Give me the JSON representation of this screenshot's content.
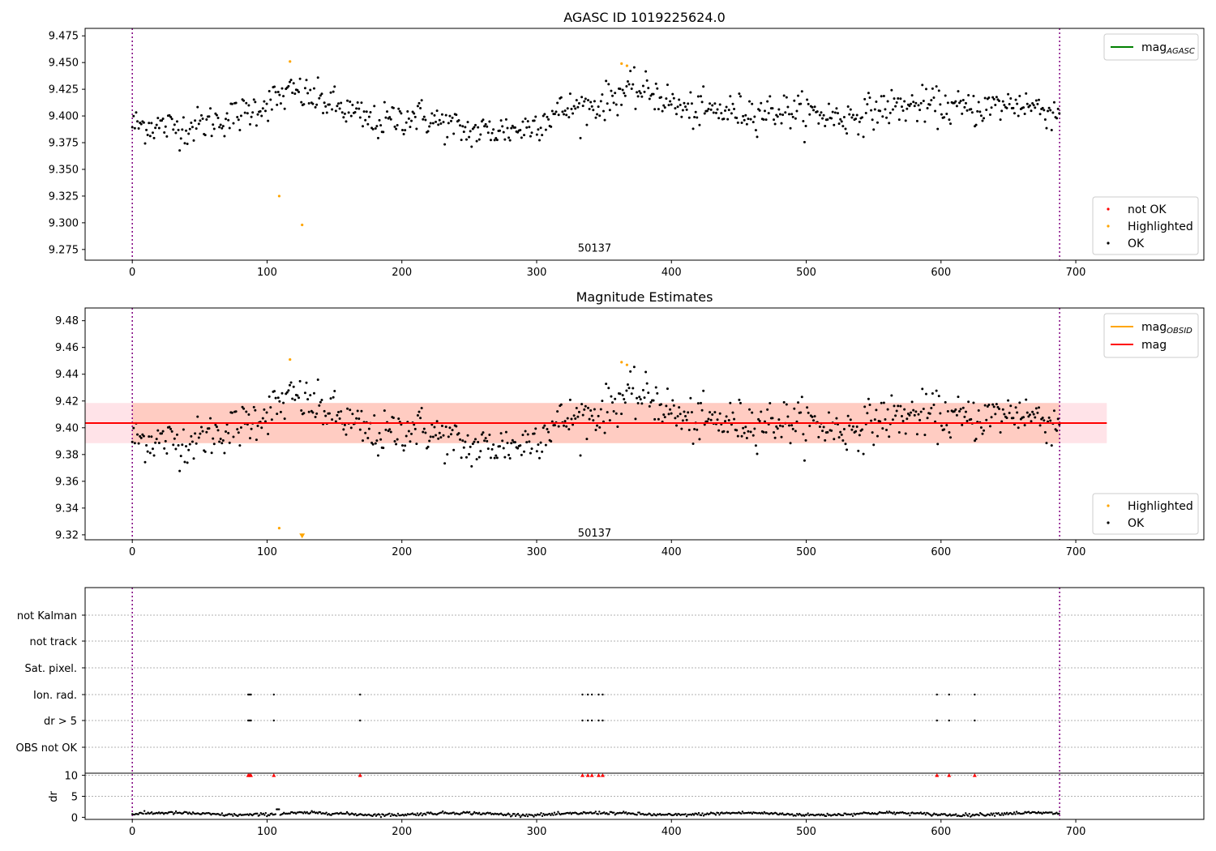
{
  "chart_data": [
    {
      "type": "scatter",
      "title": "AGASC ID 1019225624.0",
      "xlim": [
        -35,
        795
      ],
      "ylim": [
        9.265,
        9.482
      ],
      "xticks": [
        0,
        100,
        200,
        300,
        400,
        500,
        600,
        700
      ],
      "yticks": [
        9.275,
        9.3,
        9.325,
        9.35,
        9.375,
        9.4,
        9.425,
        9.45,
        9.475
      ],
      "ytick_labels": [
        "9.275",
        "9.300",
        "9.325",
        "9.350",
        "9.375",
        "9.400",
        "9.425",
        "9.450",
        "9.475"
      ],
      "vlines": [
        0,
        688
      ],
      "annotation": {
        "text": "50137",
        "x": 343,
        "y": 9.276
      },
      "line_legend": [
        {
          "name": "mag_AGASC",
          "base": "mag",
          "sub": "AGASC",
          "color": "#008000"
        }
      ],
      "point_legend": [
        {
          "name": "not OK",
          "color": "#ff0000"
        },
        {
          "name": "Highlighted",
          "color": "#ffa500"
        },
        {
          "name": "OK",
          "color": "#000000"
        }
      ],
      "series": [
        {
          "name": "OK",
          "color": "#000000",
          "kind": "baseline",
          "knots": [
            [
              0,
              9.392
            ],
            [
              40,
              9.389
            ],
            [
              80,
              9.401
            ],
            [
              120,
              9.423
            ],
            [
              150,
              9.41
            ],
            [
              180,
              9.393
            ],
            [
              210,
              9.401
            ],
            [
              250,
              9.385
            ],
            [
              290,
              9.388
            ],
            [
              320,
              9.406
            ],
            [
              345,
              9.41
            ],
            [
              365,
              9.423
            ],
            [
              385,
              9.423
            ],
            [
              410,
              9.405
            ],
            [
              450,
              9.404
            ],
            [
              490,
              9.405
            ],
            [
              530,
              9.398
            ],
            [
              560,
              9.408
            ],
            [
              590,
              9.41
            ],
            [
              620,
              9.406
            ],
            [
              660,
              9.412
            ],
            [
              688,
              9.402
            ]
          ],
          "noise": 0.011
        },
        {
          "name": "Highlighted",
          "color": "#ffa500",
          "points": [
            [
              117,
              9.451
            ],
            [
              363,
              9.449
            ],
            [
              367,
              9.447
            ],
            [
              109,
              9.325
            ],
            [
              126,
              9.298
            ]
          ]
        }
      ]
    },
    {
      "type": "scatter",
      "title": "Magnitude Estimates",
      "xlim": [
        -35,
        795
      ],
      "ylim": [
        9.3163,
        9.4895
      ],
      "xticks": [
        0,
        100,
        200,
        300,
        400,
        500,
        600,
        700
      ],
      "yticks": [
        9.32,
        9.34,
        9.36,
        9.38,
        9.4,
        9.42,
        9.44,
        9.46,
        9.48
      ],
      "ytick_labels": [
        "9.32",
        "9.34",
        "9.36",
        "9.38",
        "9.40",
        "9.42",
        "9.44",
        "9.46",
        "9.48"
      ],
      "vlines": [
        0,
        688
      ],
      "annotation": {
        "text": "50137",
        "x": 343,
        "y": 9.321
      },
      "line_legend": [
        {
          "name": "mag_OBSID",
          "base": "mag",
          "sub": "OBSID",
          "color": "#ffa500"
        },
        {
          "name": "mag",
          "base": "mag",
          "sub": "",
          "color": "#ff0000"
        }
      ],
      "point_legend": [
        {
          "name": "Highlighted",
          "color": "#ffa500"
        },
        {
          "name": "OK",
          "color": "#000000"
        }
      ],
      "bands": [
        {
          "x": [
            -35,
            723
          ],
          "y": [
            9.3885,
            9.4185
          ],
          "color": "#ffc0cb",
          "opacity": 0.45
        },
        {
          "x": [
            0,
            688
          ],
          "y": [
            9.3885,
            9.4185
          ],
          "color": "#ffa07a",
          "opacity": 0.35
        }
      ],
      "hline": {
        "y": 9.4035,
        "x": [
          -35,
          723
        ],
        "color": "#ff0000"
      },
      "series": [
        {
          "name": "OK",
          "color": "#000000",
          "kind": "baseline",
          "noise": 0.011
        },
        {
          "name": "Highlighted",
          "color": "#ffa500",
          "points": [
            [
              117,
              9.451
            ],
            [
              363,
              9.449
            ],
            [
              367,
              9.447
            ],
            [
              109,
              9.325
            ]
          ]
        },
        {
          "name": "Highlighted-offscale",
          "color": "#ffa500",
          "marker": "triangle-down",
          "points": [
            [
              126,
              9.318
            ]
          ]
        }
      ]
    },
    {
      "type": "scatter",
      "title": "",
      "xlim": [
        -35,
        795
      ],
      "xticks": [
        0,
        100,
        200,
        300,
        400,
        500,
        600,
        700
      ],
      "flag_rows": [
        "not Kalman",
        "not track",
        "Sat. pixel.",
        "Ion. rad.",
        "dr > 5",
        "OBS not OK"
      ],
      "flag_points": {
        "Ion. rad.": [
          86,
          87,
          88,
          105,
          169,
          334,
          338,
          341,
          346,
          349,
          597,
          606,
          625
        ],
        "dr > 5": [
          86,
          87,
          88,
          105,
          169,
          334,
          338,
          341,
          346,
          349,
          597,
          606,
          625
        ]
      },
      "dr_panel": {
        "ylabel": "dr",
        "ylim": [
          -0.5,
          10.5
        ],
        "yticks": [
          0,
          5,
          10
        ],
        "clipped_at": 10,
        "clipped_points": [
          86,
          87,
          88,
          105,
          169,
          334,
          338,
          341,
          346,
          349,
          597,
          606,
          625
        ],
        "typical_dr": 0.8,
        "noise": 0.35
      },
      "vlines": [
        0,
        688
      ]
    }
  ]
}
